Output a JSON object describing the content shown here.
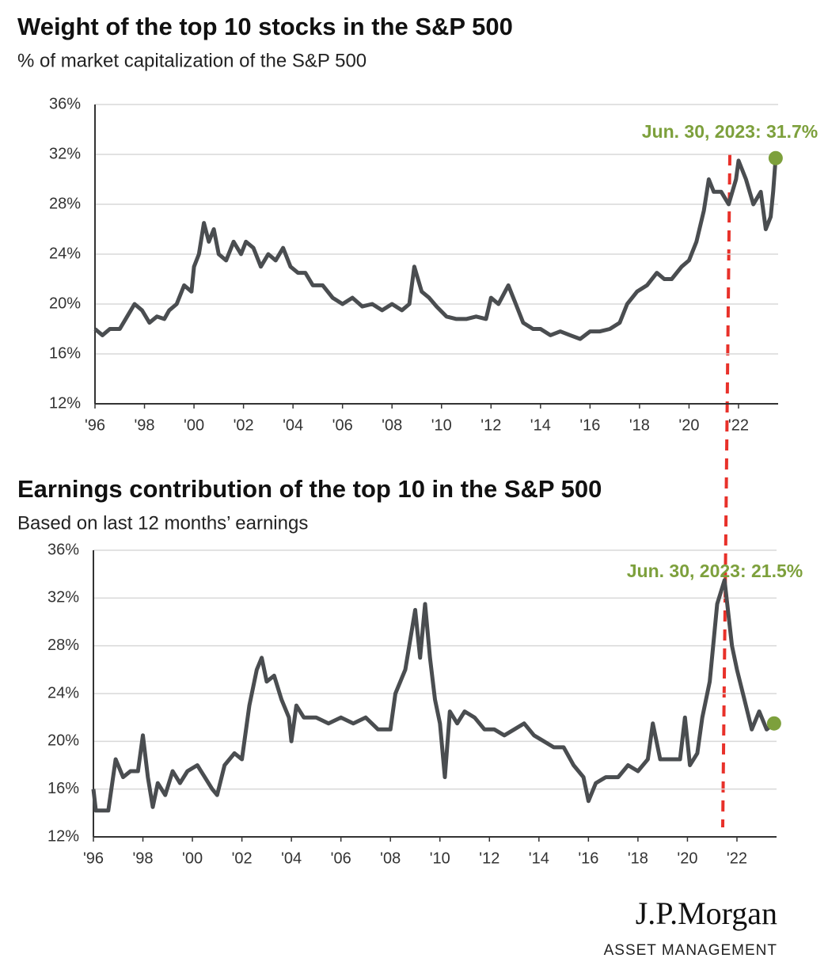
{
  "chart_data": [
    {
      "type": "line",
      "title": "Weight of the top 10 stocks in the S&P 500",
      "subtitle": "% of market capitalization of the S&P 500",
      "annotation": "Jun. 30, 2023: 31.7%",
      "line_color": "#4a4d50",
      "marker_color": "#7da03c",
      "grid": true,
      "xlim": [
        1996,
        2023.6
      ],
      "ylim": [
        12,
        36
      ],
      "xticks": [
        {
          "value": 1996,
          "label": "'96"
        },
        {
          "value": 1998,
          "label": "'98"
        },
        {
          "value": 2000,
          "label": "'00"
        },
        {
          "value": 2002,
          "label": "'02"
        },
        {
          "value": 2004,
          "label": "'04"
        },
        {
          "value": 2006,
          "label": "'06"
        },
        {
          "value": 2008,
          "label": "'08"
        },
        {
          "value": 2010,
          "label": "'10"
        },
        {
          "value": 2012,
          "label": "'12"
        },
        {
          "value": 2014,
          "label": "'14"
        },
        {
          "value": 2016,
          "label": "'16"
        },
        {
          "value": 2018,
          "label": "'18"
        },
        {
          "value": 2020,
          "label": "'20"
        },
        {
          "value": 2022,
          "label": "'22"
        }
      ],
      "yticks": [
        {
          "value": 12,
          "label": "12%"
        },
        {
          "value": 16,
          "label": "16%"
        },
        {
          "value": 20,
          "label": "20%"
        },
        {
          "value": 24,
          "label": "24%"
        },
        {
          "value": 28,
          "label": "28%"
        },
        {
          "value": 32,
          "label": "32%"
        },
        {
          "value": 36,
          "label": "36%"
        }
      ],
      "x": [
        1996.0,
        1996.3,
        1996.6,
        1997.0,
        1997.3,
        1997.6,
        1997.9,
        1998.2,
        1998.5,
        1998.8,
        1999.0,
        1999.3,
        1999.6,
        1999.9,
        2000.0,
        2000.2,
        2000.4,
        2000.6,
        2000.8,
        2001.0,
        2001.3,
        2001.6,
        2001.9,
        2002.1,
        2002.4,
        2002.7,
        2003.0,
        2003.3,
        2003.6,
        2003.9,
        2004.2,
        2004.5,
        2004.8,
        2005.2,
        2005.6,
        2006.0,
        2006.4,
        2006.8,
        2007.2,
        2007.6,
        2008.0,
        2008.4,
        2008.7,
        2008.9,
        2009.2,
        2009.5,
        2009.8,
        2010.2,
        2010.6,
        2011.0,
        2011.4,
        2011.8,
        2012.0,
        2012.3,
        2012.7,
        2013.0,
        2013.3,
        2013.7,
        2014.0,
        2014.4,
        2014.8,
        2015.2,
        2015.6,
        2016.0,
        2016.4,
        2016.8,
        2017.2,
        2017.5,
        2017.9,
        2018.3,
        2018.7,
        2019.0,
        2019.3,
        2019.7,
        2020.0,
        2020.3,
        2020.6,
        2020.8,
        2021.0,
        2021.3,
        2021.6,
        2021.9,
        2022.0,
        2022.3,
        2022.6,
        2022.9,
        2023.1,
        2023.3,
        2023.4,
        2023.5
      ],
      "values": [
        18,
        17.5,
        18,
        18,
        19,
        20,
        19.5,
        18.5,
        19,
        18.8,
        19.5,
        20,
        21.5,
        21,
        23,
        24,
        26.5,
        25,
        26,
        24,
        23.5,
        25,
        24,
        25,
        24.5,
        23,
        24,
        23.5,
        24.5,
        23,
        22.5,
        22.5,
        21.5,
        21.5,
        20.5,
        20,
        20.5,
        19.8,
        20,
        19.5,
        20,
        19.5,
        20,
        23,
        21,
        20.5,
        19.8,
        19,
        18.8,
        18.8,
        19,
        18.8,
        20.5,
        20,
        21.5,
        20,
        18.5,
        18,
        18,
        17.5,
        17.8,
        17.5,
        17.2,
        17.8,
        17.8,
        18,
        18.5,
        20,
        21,
        21.5,
        22.5,
        22,
        22,
        23,
        23.5,
        25,
        27.5,
        30,
        29,
        29,
        28,
        30,
        31.5,
        30,
        28,
        29,
        26,
        27,
        29,
        31.7
      ]
    },
    {
      "type": "line",
      "title": "Earnings contribution of the top 10 in the S&P 500",
      "subtitle": "Based on last 12 months’ earnings",
      "annotation": "Jun. 30, 2023: 21.5%",
      "line_color": "#4a4d50",
      "marker_color": "#7da03c",
      "grid": true,
      "xlim": [
        1996,
        2023.6
      ],
      "ylim": [
        12,
        36
      ],
      "xticks": [
        {
          "value": 1996,
          "label": "'96"
        },
        {
          "value": 1998,
          "label": "'98"
        },
        {
          "value": 2000,
          "label": "'00"
        },
        {
          "value": 2002,
          "label": "'02"
        },
        {
          "value": 2004,
          "label": "'04"
        },
        {
          "value": 2006,
          "label": "'06"
        },
        {
          "value": 2008,
          "label": "'08"
        },
        {
          "value": 2010,
          "label": "'10"
        },
        {
          "value": 2012,
          "label": "'12"
        },
        {
          "value": 2014,
          "label": "'14"
        },
        {
          "value": 2016,
          "label": "'16"
        },
        {
          "value": 2018,
          "label": "'18"
        },
        {
          "value": 2020,
          "label": "'20"
        },
        {
          "value": 2022,
          "label": "'22"
        }
      ],
      "yticks": [
        {
          "value": 12,
          "label": "12%"
        },
        {
          "value": 16,
          "label": "16%"
        },
        {
          "value": 20,
          "label": "20%"
        },
        {
          "value": 24,
          "label": "24%"
        },
        {
          "value": 28,
          "label": "28%"
        },
        {
          "value": 32,
          "label": "32%"
        },
        {
          "value": 36,
          "label": "36%"
        }
      ],
      "x": [
        1996.0,
        1996.1,
        1996.6,
        1996.9,
        1997.2,
        1997.5,
        1997.8,
        1998.0,
        1998.2,
        1998.4,
        1998.6,
        1998.9,
        1999.2,
        1999.5,
        1999.8,
        2000.2,
        2000.5,
        2000.8,
        2001.0,
        2001.3,
        2001.7,
        2002.0,
        2002.3,
        2002.6,
        2002.8,
        2003.0,
        2003.3,
        2003.6,
        2003.9,
        2004.0,
        2004.2,
        2004.5,
        2005.0,
        2005.5,
        2006.0,
        2006.5,
        2007.0,
        2007.5,
        2008.0,
        2008.2,
        2008.6,
        2009.0,
        2009.2,
        2009.4,
        2009.6,
        2009.8,
        2010.0,
        2010.2,
        2010.4,
        2010.7,
        2011.0,
        2011.4,
        2011.8,
        2012.2,
        2012.6,
        2013.0,
        2013.4,
        2013.8,
        2014.2,
        2014.6,
        2015.0,
        2015.4,
        2015.8,
        2016.0,
        2016.3,
        2016.7,
        2017.2,
        2017.6,
        2018.0,
        2018.4,
        2018.6,
        2018.9,
        2019.3,
        2019.7,
        2019.9,
        2020.1,
        2020.4,
        2020.6,
        2020.9,
        2021.2,
        2021.5,
        2021.8,
        2022.0,
        2022.3,
        2022.6,
        2022.9,
        2023.2,
        2023.5
      ],
      "values": [
        16,
        14.2,
        14.2,
        18.5,
        17,
        17.5,
        17.5,
        20.5,
        17,
        14.5,
        16.5,
        15.5,
        17.5,
        16.5,
        17.5,
        18,
        17,
        16,
        15.5,
        18,
        19,
        18.5,
        23,
        26,
        27,
        25,
        25.5,
        23.5,
        22,
        20,
        23,
        22,
        22,
        21.5,
        22,
        21.5,
        22,
        21,
        21,
        24,
        26,
        31,
        27,
        31.5,
        27,
        23.5,
        21.5,
        17,
        22.5,
        21.5,
        22.5,
        22,
        21,
        21,
        20.5,
        21,
        21.5,
        20.5,
        20,
        19.5,
        19.5,
        18,
        17,
        15,
        16.5,
        17,
        17,
        18,
        17.5,
        18.5,
        21.5,
        18.5,
        18.5,
        18.5,
        22,
        18,
        19,
        22,
        25,
        31.5,
        33.5,
        28,
        26,
        23.5,
        21,
        22.5,
        21,
        21.5
      ]
    }
  ],
  "footer": {
    "brand": "J.P.Morgan",
    "division": "ASSET MANAGEMENT"
  }
}
